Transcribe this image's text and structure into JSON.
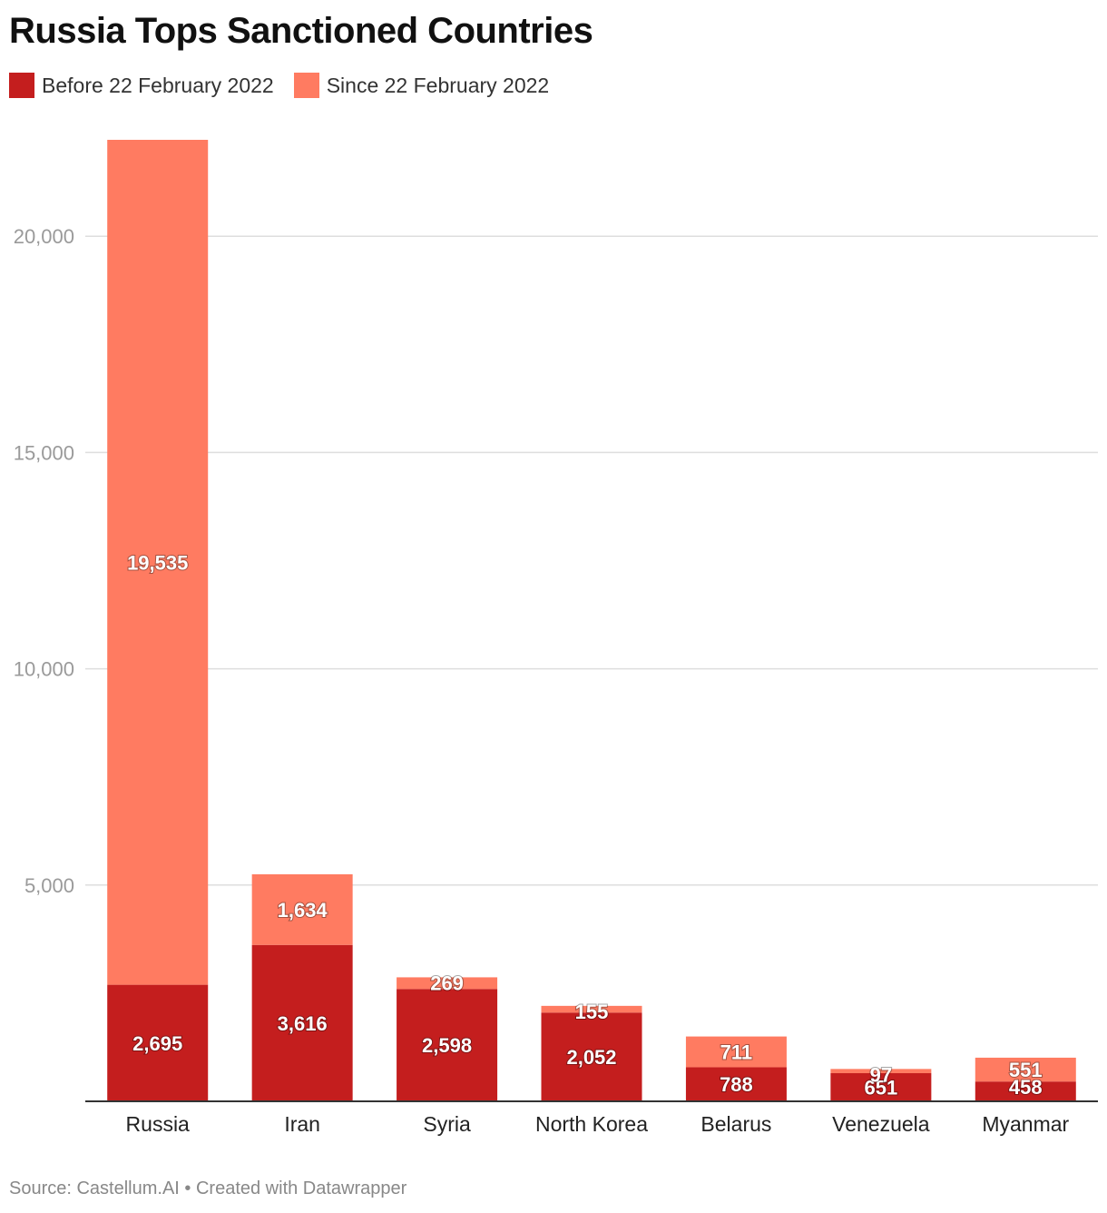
{
  "chart_data": {
    "type": "bar",
    "stacked": true,
    "title": "Russia Tops Sanctioned Countries",
    "categories": [
      "Russia",
      "Iran",
      "Syria",
      "North Korea",
      "Belarus",
      "Venezuela",
      "Myanmar"
    ],
    "series": [
      {
        "name": "Before 22 February 2022",
        "color": "#c41e1e",
        "values": [
          2695,
          3616,
          2598,
          2052,
          788,
          651,
          458
        ]
      },
      {
        "name": "Since 22 February 2022",
        "color": "#ff7b61",
        "values": [
          19535,
          1634,
          269,
          155,
          711,
          97,
          551
        ]
      }
    ],
    "ylim": [
      0,
      22230
    ],
    "yticks": [
      5000,
      10000,
      15000,
      20000
    ],
    "ytick_labels": [
      "5,000",
      "10,000",
      "15,000",
      "20,000"
    ],
    "grid": true,
    "legend_position": "top-left",
    "xlabel": "",
    "ylabel": ""
  },
  "footer": {
    "source": "Source: Castellum.AI • Created with Datawrapper"
  }
}
